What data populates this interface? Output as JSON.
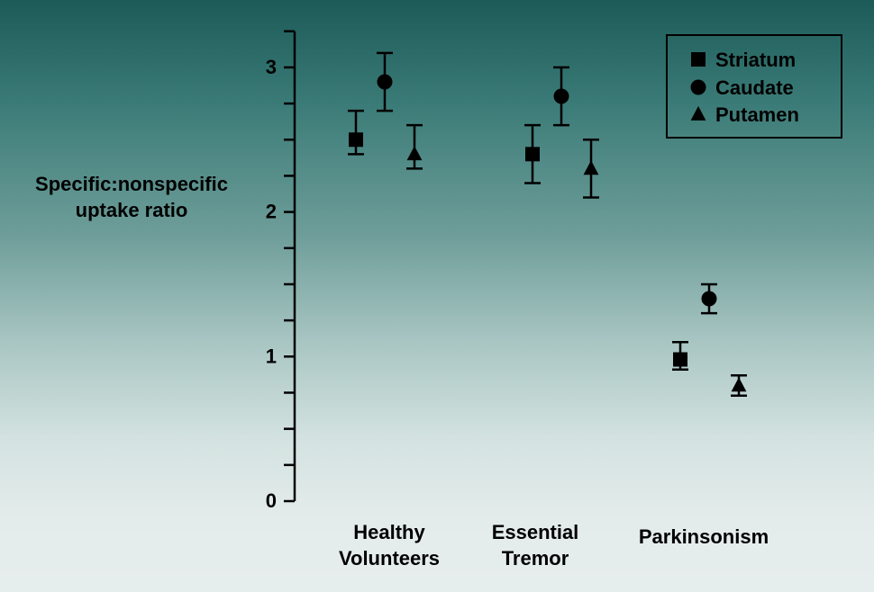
{
  "chart_data": {
    "type": "scatter",
    "ylabel_lines": [
      "Specific:nonspecific",
      "uptake ratio"
    ],
    "ylim": [
      0,
      3.25
    ],
    "yticks": [
      0,
      1,
      2,
      3
    ],
    "yminor_step": 0.25,
    "groups": [
      {
        "label_lines": [
          "Healthy",
          "Volunteers"
        ]
      },
      {
        "label_lines": [
          "Essential",
          "Tremor"
        ]
      },
      {
        "label_lines": [
          "Parkinsonism"
        ]
      }
    ],
    "series": [
      {
        "name": "Striatum",
        "marker": "square",
        "values": [
          2.5,
          2.4,
          0.98
        ],
        "err_low": [
          2.4,
          2.2,
          0.91
        ],
        "err_high": [
          2.7,
          2.6,
          1.1
        ]
      },
      {
        "name": "Caudate",
        "marker": "circle",
        "values": [
          2.9,
          2.8,
          1.4
        ],
        "err_low": [
          2.7,
          2.6,
          1.3
        ],
        "err_high": [
          3.1,
          3.0,
          1.5
        ]
      },
      {
        "name": "Putamen",
        "marker": "triangle",
        "values": [
          2.4,
          2.3,
          0.8
        ],
        "err_low": [
          2.3,
          2.1,
          0.73
        ],
        "err_high": [
          2.6,
          2.5,
          0.87
        ]
      }
    ],
    "legend_position": "top-right",
    "grid": false,
    "colors": {
      "marker": "#000000",
      "axis": "#000000"
    }
  }
}
